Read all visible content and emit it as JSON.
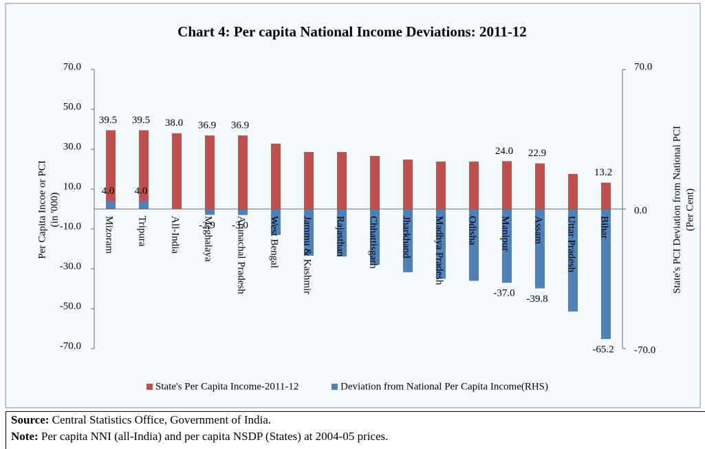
{
  "chart_data": {
    "type": "bar",
    "title": "Chart 4: Per capita National Income Deviations: 2011-12",
    "ylabel": [
      "Per Capita Incoe or PCI",
      "(in '000)"
    ],
    "y2label": [
      "State's PCI Deviation from National PCI",
      "(Per Cent)"
    ],
    "categories": [
      "Mizoram",
      "Tripura",
      "All-India",
      "Meghalaya",
      "Arunachal Pradesh",
      "West Bengal",
      "Jammu & Kashmir",
      "Rajasthan",
      "Chhattisgarh",
      "Jharkhand",
      "Madhya Pradesh",
      "Odisha",
      "Manipur",
      "Assam",
      "Uttar Pradesh",
      "Bihar"
    ],
    "series": [
      {
        "name": "State's Per Capita Income-2011-12",
        "color": "#c0504d",
        "values": [
          39.5,
          39.5,
          38.0,
          36.9,
          36.9,
          32.8,
          28.6,
          28.6,
          26.6,
          24.8,
          23.8,
          23.8,
          24.0,
          22.9,
          17.6,
          13.2
        ],
        "value_labels": [
          "39.5",
          "39.5",
          "38.0",
          "36.9",
          "36.9",
          null,
          null,
          null,
          null,
          null,
          null,
          null,
          "24.0",
          "22.9",
          null,
          "13.2"
        ]
      },
      {
        "name": "Deviation from National Per Capita Income(RHS)",
        "color": "#4f81bd",
        "axis": "y2",
        "values": [
          4.0,
          4.0,
          0,
          -2.9,
          -3.0,
          -13,
          -23.4,
          -23.8,
          -28,
          -31.7,
          -35,
          -36,
          -37.0,
          -39.8,
          -51.4,
          -65.2
        ],
        "value_labels": [
          "4.0",
          "4.0",
          null,
          "-2.9",
          "-3.0",
          null,
          null,
          null,
          null,
          null,
          null,
          null,
          "-37.0",
          "-39.8",
          null,
          "-65.2"
        ]
      }
    ],
    "ylim": [
      -70,
      70
    ],
    "yticks": [
      {
        "value": -70,
        "label": "-70.0"
      },
      {
        "value": -50,
        "label": "-50.0"
      },
      {
        "value": -30,
        "label": "-30.0"
      },
      {
        "value": -10,
        "label": "-10.0"
      },
      {
        "value": 10,
        "label": "10.0"
      },
      {
        "value": 30,
        "label": "30.0"
      },
      {
        "value": 50,
        "label": "50.0"
      },
      {
        "value": 70,
        "label": "70.0"
      }
    ],
    "y2lim": [
      -70,
      70
    ],
    "y2ticks": [
      {
        "value": -70,
        "label": "-70.0"
      },
      {
        "value": 0,
        "label": "0.0"
      },
      {
        "value": 70,
        "label": "70.0"
      }
    ],
    "legend": "bottom"
  },
  "footer": {
    "source_label": "Source:",
    "source_text": "Central Statistics Office, Government of India.",
    "note_label": "Note:",
    "note_text": "Per capita NNI (all-India) and per capita NSDP (States) at 2004-05 prices."
  }
}
